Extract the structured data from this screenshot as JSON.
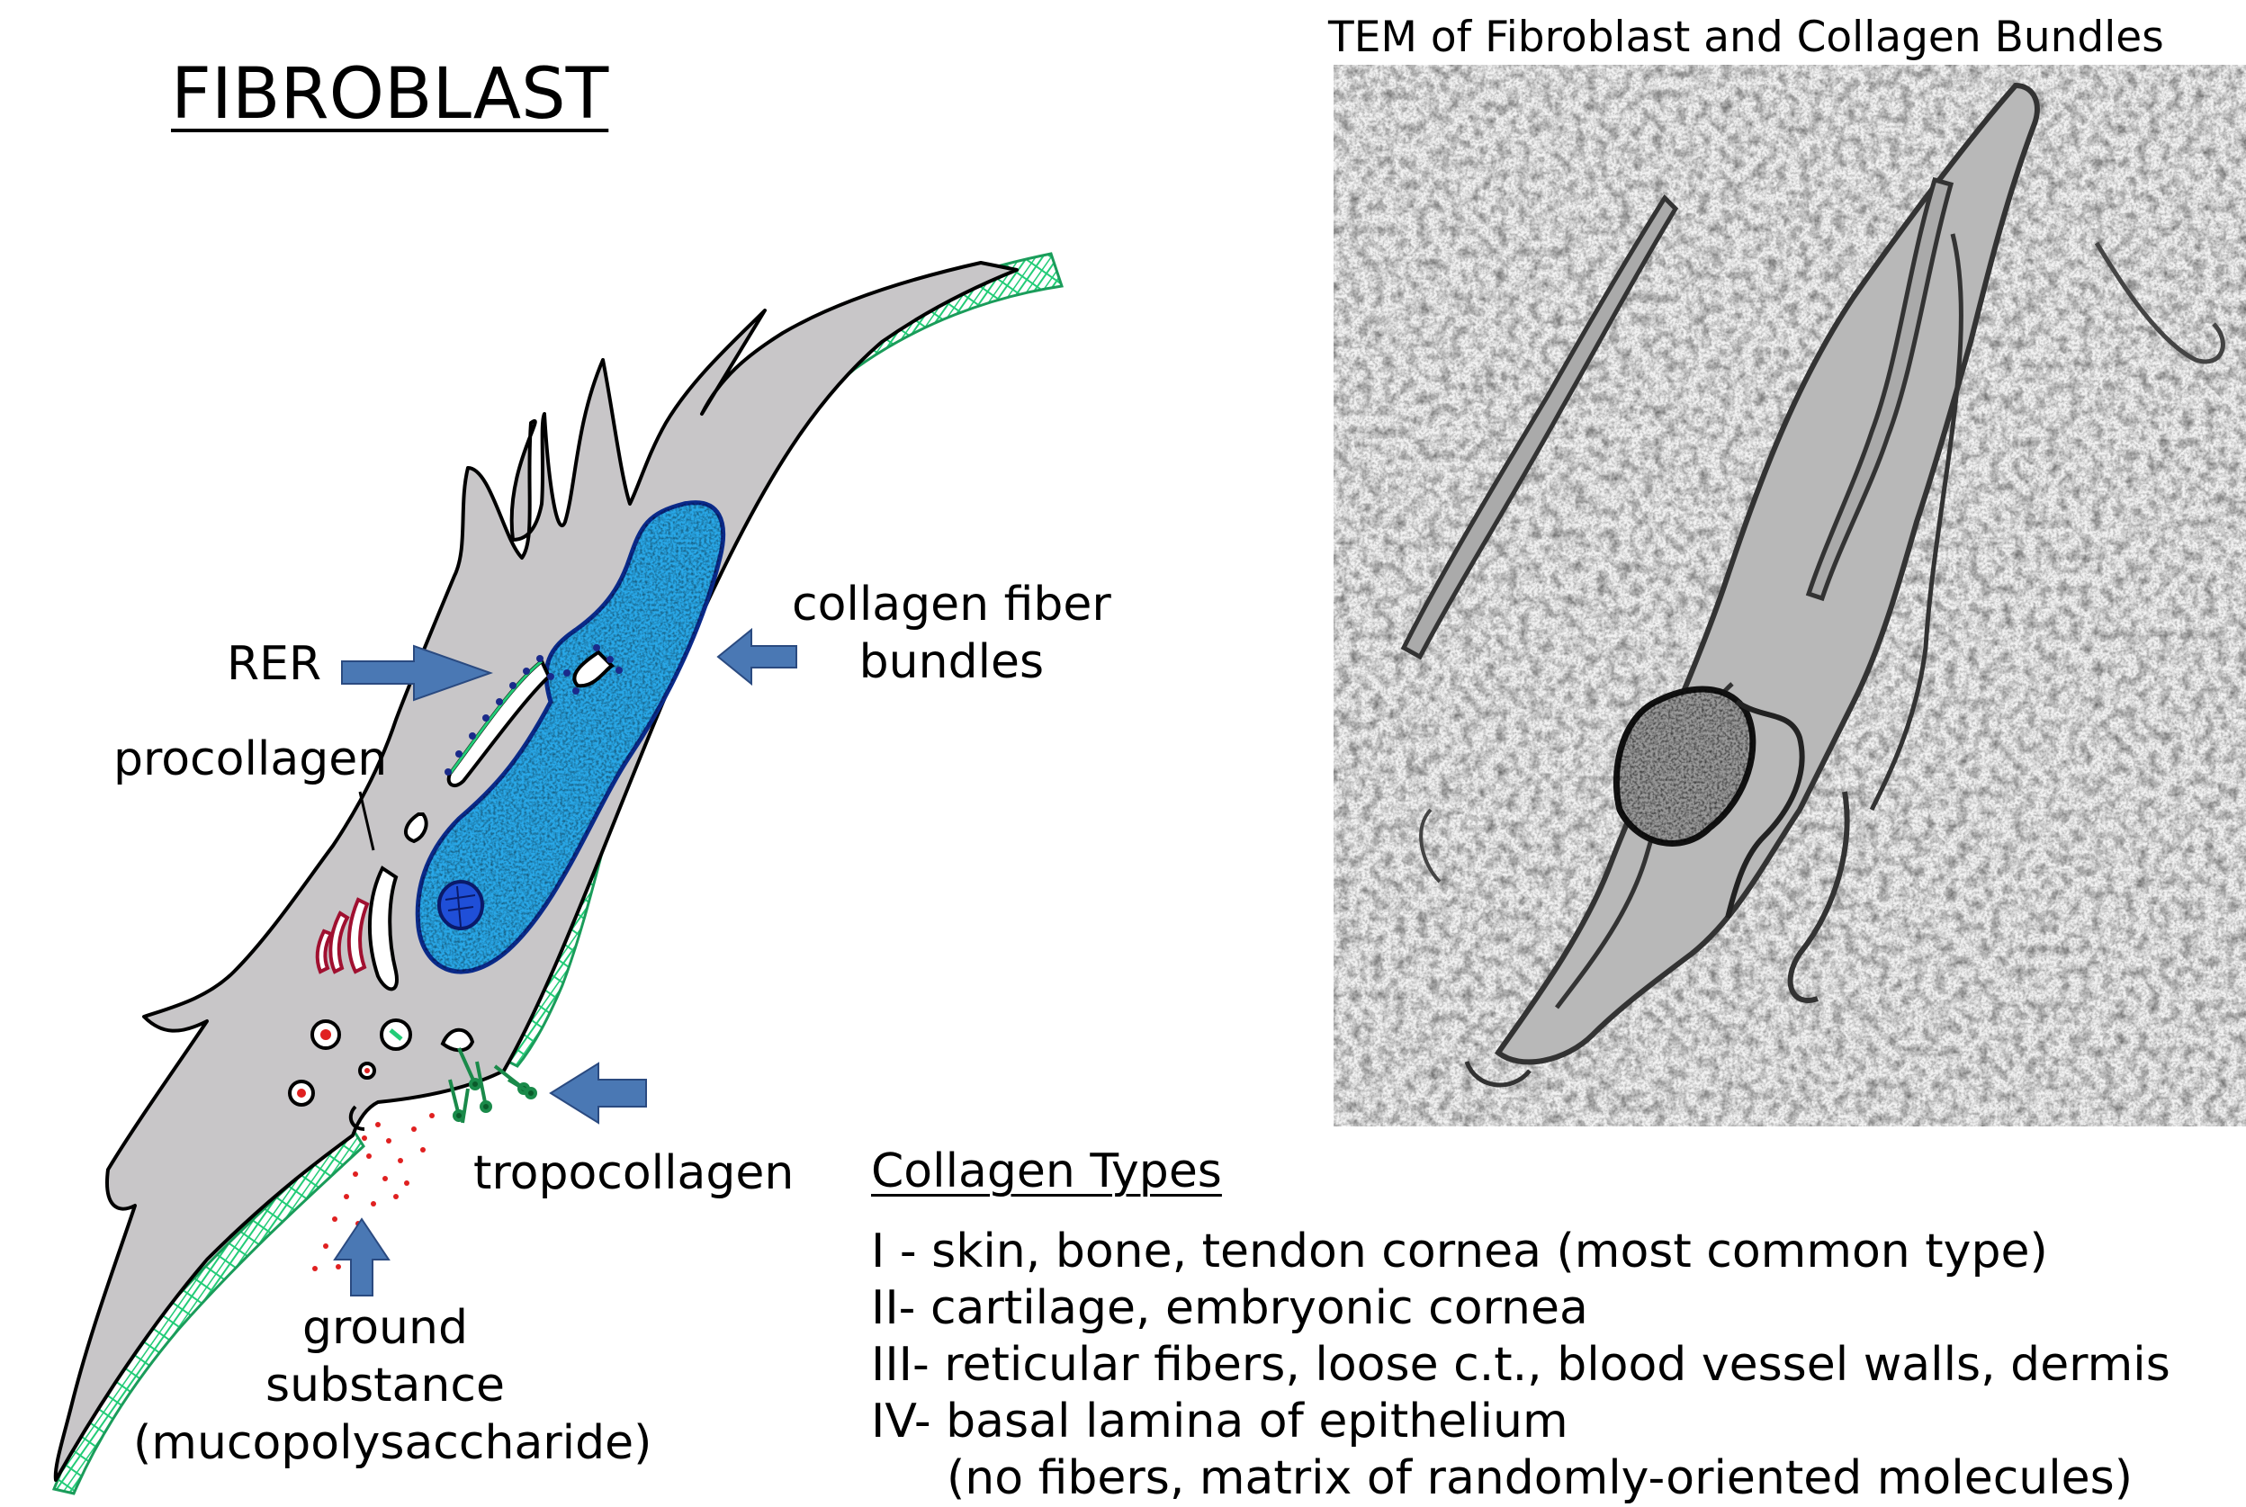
{
  "title": "FIBROBLAST",
  "tem_title": "TEM of Fibroblast and Collagen Bundles",
  "labels": {
    "rer": "RER",
    "procollagen": "procollagen",
    "collagen_fiber_bundles": [
      "collagen fiber",
      "bundles"
    ],
    "tropocollagen": "tropocollagen",
    "ground_substance": [
      "ground",
      "substance",
      "(mucopolysaccharide)"
    ]
  },
  "collagen_types": {
    "heading": "Collagen Types",
    "items": [
      "I - skin, bone, tendon cornea (most common type)",
      "II- cartilage, embryonic cornea",
      "III- reticular fibers, loose c.t., blood vessel walls, dermis",
      "IV- basal lamina of epithelium",
      "(no fibers, matrix of randomly-oriented molecules)"
    ]
  },
  "colors": {
    "cell_body": "#c8c6c8",
    "nucleus": "#29a8e8",
    "nucleolus": "#1f4fd8",
    "collagen": "#22cc77",
    "arrow": "#4a78b4",
    "ground_substance_dots": "#e02020"
  }
}
